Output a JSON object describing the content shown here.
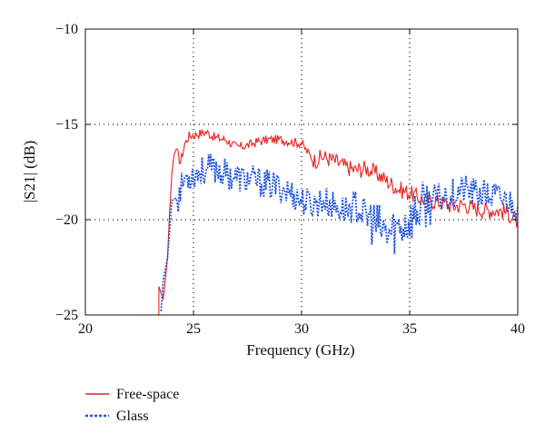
{
  "chart_data": {
    "type": "line",
    "xlabel": "Frequency (GHz)",
    "ylabel": "|S21| (dB)",
    "xlim": [
      20,
      40
    ],
    "ylim": [
      -25,
      -10
    ],
    "xticks": [
      20,
      25,
      30,
      35,
      40
    ],
    "yticks": [
      -25,
      -20,
      -15,
      -10
    ],
    "xtick_labels": [
      "20",
      "25",
      "30",
      "35",
      "40"
    ],
    "ytick_labels": [
      "−25",
      "−20",
      "−15",
      "−10"
    ],
    "grid": true,
    "legend_position": "below-left",
    "series": [
      {
        "name": "Free-space",
        "color": "#e8201f",
        "style": "solid",
        "points": [
          [
            23.4,
            -25.0
          ],
          [
            23.4,
            -23.5
          ],
          [
            23.6,
            -24.2
          ],
          [
            23.8,
            -22.0
          ],
          [
            23.9,
            -19.5
          ],
          [
            24.0,
            -17.6
          ],
          [
            24.1,
            -16.6
          ],
          [
            24.2,
            -16.3
          ],
          [
            24.4,
            -17.0
          ],
          [
            24.6,
            -16.0
          ],
          [
            24.8,
            -15.6
          ],
          [
            25.2,
            -15.5
          ],
          [
            25.6,
            -15.4
          ],
          [
            26.0,
            -15.7
          ],
          [
            26.5,
            -15.8
          ],
          [
            27.0,
            -16.2
          ],
          [
            27.5,
            -16.1
          ],
          [
            28.0,
            -15.9
          ],
          [
            28.5,
            -15.8
          ],
          [
            29.0,
            -15.8
          ],
          [
            29.5,
            -15.9
          ],
          [
            30.0,
            -16.0
          ],
          [
            30.3,
            -16.5
          ],
          [
            30.6,
            -16.9
          ],
          [
            31.0,
            -16.7
          ],
          [
            31.5,
            -16.9
          ],
          [
            32.0,
            -17.2
          ],
          [
            32.5,
            -17.4
          ],
          [
            33.0,
            -17.3
          ],
          [
            33.5,
            -17.6
          ],
          [
            34.0,
            -18.0
          ],
          [
            34.5,
            -18.4
          ],
          [
            35.0,
            -18.6
          ],
          [
            35.5,
            -18.9
          ],
          [
            36.0,
            -19.0
          ],
          [
            36.5,
            -19.1
          ],
          [
            37.0,
            -19.3
          ],
          [
            37.5,
            -19.2
          ],
          [
            38.0,
            -19.4
          ],
          [
            38.5,
            -19.5
          ],
          [
            39.0,
            -19.5
          ],
          [
            39.5,
            -19.6
          ],
          [
            40.0,
            -20.1
          ]
        ]
      },
      {
        "name": "Glass",
        "color": "#2255dd",
        "style": "dotted",
        "points": [
          [
            23.5,
            -24.8
          ],
          [
            23.6,
            -23.2
          ],
          [
            23.8,
            -22.0
          ],
          [
            24.0,
            -19.0
          ],
          [
            24.3,
            -18.8
          ],
          [
            24.6,
            -17.8
          ],
          [
            25.0,
            -17.6
          ],
          [
            25.5,
            -17.4
          ],
          [
            26.0,
            -17.3
          ],
          [
            26.5,
            -17.6
          ],
          [
            27.0,
            -17.8
          ],
          [
            27.5,
            -17.9
          ],
          [
            28.0,
            -18.0
          ],
          [
            28.5,
            -18.2
          ],
          [
            29.0,
            -18.3
          ],
          [
            29.5,
            -18.6
          ],
          [
            30.0,
            -19.0
          ],
          [
            30.5,
            -19.2
          ],
          [
            31.0,
            -19.0
          ],
          [
            31.5,
            -19.3
          ],
          [
            32.0,
            -19.5
          ],
          [
            32.5,
            -19.3
          ],
          [
            33.0,
            -19.8
          ],
          [
            33.5,
            -20.4
          ],
          [
            34.0,
            -20.8
          ],
          [
            34.5,
            -20.4
          ],
          [
            35.0,
            -20.0
          ],
          [
            35.5,
            -19.4
          ],
          [
            36.0,
            -19.0
          ],
          [
            36.5,
            -18.8
          ],
          [
            37.0,
            -18.6
          ],
          [
            37.5,
            -18.4
          ],
          [
            38.0,
            -18.6
          ],
          [
            38.5,
            -18.7
          ],
          [
            39.0,
            -18.8
          ],
          [
            39.5,
            -19.0
          ],
          [
            40.0,
            -19.3
          ]
        ]
      }
    ]
  }
}
